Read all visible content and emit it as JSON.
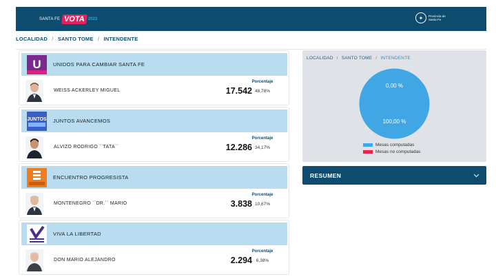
{
  "header": {
    "brand_small": "SANTA FE",
    "brand_vota": "VOTA",
    "brand_year": "2023",
    "gov_text": "Provincia de Santa Fe"
  },
  "breadcrumb": {
    "items": [
      "LOCALIDAD",
      "SANTO TOME",
      "INTENDENTE"
    ],
    "separator": "/"
  },
  "results": [
    {
      "party": "UNIDOS PARA CAMBIAR SANTA FE",
      "candidate": "WEISS ACKERLEY MIGUEL",
      "votes": "17.542",
      "pct_label": "Porcentaje",
      "pct": "48,78%",
      "logo_color": "#7a2a8c",
      "logo_text": "U"
    },
    {
      "party": "JUNTOS AVANCEMOS",
      "candidate": "ALVIZO RODRIGO ``TATA``",
      "votes": "12.286",
      "pct_label": "Porcentaje",
      "pct": "34,17%",
      "logo_color": "#3a5ec4",
      "logo_text": "JUNTOS"
    },
    {
      "party": "ENCUENTRO PROGRESISTA",
      "candidate": "MONTENEGRO ``DR.`` MARIO",
      "votes": "3.838",
      "pct_label": "Porcentaje",
      "pct": "10,67%",
      "logo_color": "#f07d1d",
      "logo_text": "E"
    },
    {
      "party": "VIVA LA LIBERTAD",
      "candidate": "DON MARIO ALEJANDRO",
      "votes": "2.294",
      "pct_label": "Porcentaje",
      "pct": "6,38%",
      "logo_color": "#4a2e8a",
      "logo_text": "VIVA LA LIBERTAD"
    }
  ],
  "mesas_panel": {
    "breadcrumb": [
      "LOCALIDAD",
      "SANTO TOME",
      "INTENDENTE"
    ],
    "pie_top_label": "0,00 %",
    "pie_bottom_label": "100,00 %",
    "legend": [
      {
        "label": "Mesas computadas",
        "color": "#3ea8e6"
      },
      {
        "label": "Mesas no computadas",
        "color": "#e6254a"
      }
    ],
    "pie_color": "#41a7e4"
  },
  "resumen": {
    "label": "RESUMEN"
  }
}
